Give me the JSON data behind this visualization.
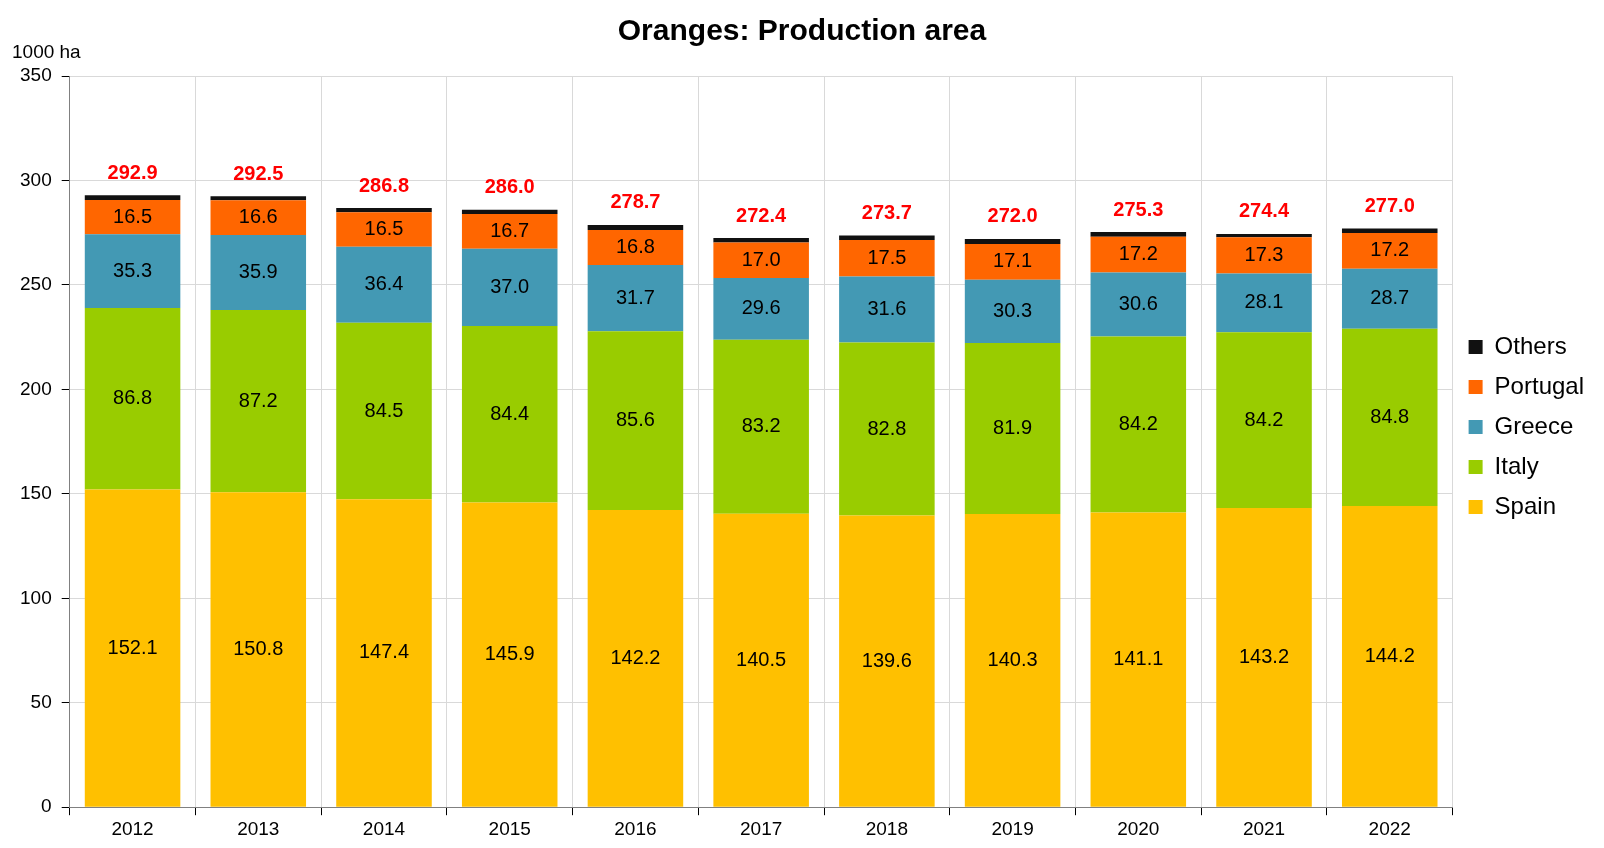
{
  "chart_data": {
    "type": "bar",
    "title": "Oranges: Production area",
    "ylabel": "1000 ha",
    "stacked": true,
    "grid": true,
    "legend": "right",
    "categories": [
      "2012",
      "2013",
      "2014",
      "2015",
      "2016",
      "2017",
      "2018",
      "2019",
      "2020",
      "2021",
      "2022"
    ],
    "ylim": [
      0,
      350
    ],
    "yticks": [
      0,
      50,
      100,
      150,
      200,
      250,
      300,
      350
    ],
    "series": [
      {
        "name": "Spain",
        "color": "#ffc000",
        "values": [
          152.1,
          150.8,
          147.4,
          145.9,
          142.2,
          140.5,
          139.6,
          140.3,
          141.1,
          143.2,
          144.2
        ],
        "value_labels": [
          "152.1",
          "150.8",
          "147.4",
          "145.9",
          "142.2",
          "140.5",
          "139.6",
          "140.3",
          "141.1",
          "143.2",
          "144.2"
        ]
      },
      {
        "name": "Italy",
        "color": "#99cc00",
        "values": [
          86.8,
          87.2,
          84.5,
          84.4,
          85.6,
          83.2,
          82.8,
          81.9,
          84.2,
          84.2,
          84.8
        ],
        "value_labels": [
          "86.8",
          "87.2",
          "84.5",
          "84.4",
          "85.6",
          "83.2",
          "82.8",
          "81.9",
          "84.2",
          "84.2",
          "84.8"
        ]
      },
      {
        "name": "Greece",
        "color": "#4399b4",
        "values": [
          35.3,
          35.9,
          36.4,
          37.0,
          31.7,
          29.6,
          31.6,
          30.3,
          30.6,
          28.1,
          28.7
        ],
        "value_labels": [
          "35.3",
          "35.9",
          "36.4",
          "37.0",
          "31.7",
          "29.6",
          "31.6",
          "30.3",
          "30.6",
          "28.1",
          "28.7"
        ]
      },
      {
        "name": "Portugal",
        "color": "#ff6600",
        "values": [
          16.5,
          16.6,
          16.5,
          16.7,
          16.8,
          17.0,
          17.5,
          17.1,
          17.2,
          17.3,
          17.2
        ],
        "value_labels": [
          "16.5",
          "16.6",
          "16.5",
          "16.7",
          "16.8",
          "17.0",
          "17.5",
          "17.1",
          "17.2",
          "17.3",
          "17.2"
        ]
      },
      {
        "name": "Others",
        "color": "#111111",
        "values": [
          2.2,
          2.0,
          2.0,
          2.0,
          2.4,
          2.1,
          2.2,
          2.4,
          2.2,
          1.6,
          2.1
        ]
      }
    ],
    "totals": [
      "292.9",
      "292.5",
      "286.8",
      "286.0",
      "278.7",
      "272.4",
      "273.7",
      "272.0",
      "275.3",
      "274.4",
      "277.0"
    ]
  }
}
